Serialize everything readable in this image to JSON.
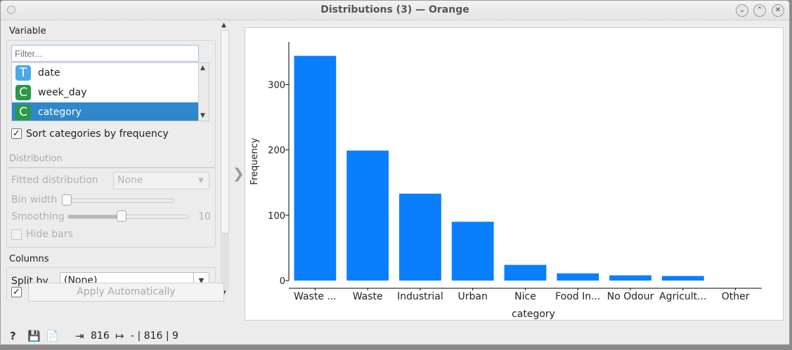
{
  "window": {
    "title": "Distributions (3) — Orange",
    "controls": [
      "chevron-down-icon",
      "chevron-up-icon",
      "close-icon"
    ]
  },
  "variable_box": {
    "title": "Variable",
    "filter_placeholder": "Filter...",
    "items": [
      {
        "icon_letter": "T",
        "label": "date",
        "icon_color": "#4aa8e8",
        "selected": false
      },
      {
        "icon_letter": "C",
        "label": "week_day",
        "icon_color": "#2a9a44",
        "selected": false
      },
      {
        "icon_letter": "C",
        "label": "category",
        "icon_color": "#2a9a44",
        "selected": true
      }
    ],
    "sort_label": "Sort categories by frequency",
    "sort_checked": true
  },
  "distribution_box": {
    "title": "Distribution",
    "fitted_label": "Fitted distribution",
    "fitted_value": "None",
    "bin_width_label": "Bin width",
    "smoothing_label": "Smoothing",
    "smoothing_value": "10",
    "hide_bars_label": "Hide bars"
  },
  "columns_box": {
    "title": "Columns",
    "split_by_label": "Split by",
    "split_by_value": "(None)"
  },
  "apply": {
    "label": "Apply Automatically",
    "checked": true
  },
  "status": {
    "input_count": "816",
    "output_text": "- | 816 | 9"
  },
  "colors": {
    "bar": "#0a7ffe",
    "selection": "#2f87cc"
  },
  "chart_data": {
    "type": "bar",
    "categories": [
      "Waste ...",
      "Waste",
      "Industrial",
      "Urban",
      "Nice",
      "Food In...",
      "No Odour",
      "Agricult...",
      "Other"
    ],
    "values": [
      344,
      199,
      133,
      90,
      24,
      11,
      8,
      7,
      0
    ],
    "xlabel": "category",
    "ylabel": "Frequency",
    "yticks": [
      0,
      100,
      200,
      300
    ],
    "ylim": [
      0,
      350
    ],
    "grid": false,
    "legend": "none"
  }
}
